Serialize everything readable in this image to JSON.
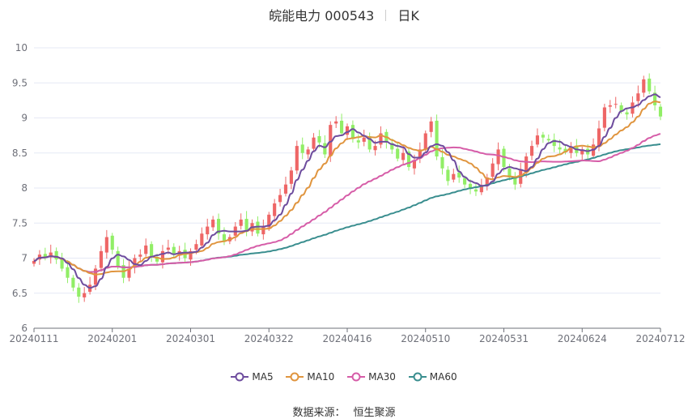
{
  "header": {
    "title": "皖能电力 000543",
    "period": "日K"
  },
  "footer": {
    "source_label": "数据来源：",
    "source_name": "恒生聚源"
  },
  "colors": {
    "up": "#ee6666",
    "down": "#91ee66",
    "ma5": "#6e4d9e",
    "ma10": "#e0953f",
    "ma30": "#d65da8",
    "ma60": "#3a8e8f",
    "grid": "#e6e9f5",
    "axis": "#6e7079"
  },
  "chart_data": {
    "type": "candlestick",
    "title": "皖能电力 000543",
    "ylim": [
      6,
      10
    ],
    "yticks": [
      "6",
      "6.5",
      "7",
      "7.5",
      "8",
      "8.5",
      "9",
      "9.5",
      "10"
    ],
    "x_tick_labels": [
      "20240111",
      "20240201",
      "20240301",
      "20240322",
      "20240416",
      "20240510",
      "20240531",
      "20240624",
      "20240712"
    ],
    "x_tick_indices": [
      0,
      14,
      28,
      42,
      56,
      70,
      84,
      98,
      112
    ],
    "legend": [
      "MA5",
      "MA10",
      "MA30",
      "MA60"
    ],
    "close": [
      6.96,
      7.05,
      7.02,
      7.08,
      6.98,
      6.85,
      6.72,
      6.58,
      6.45,
      6.5,
      6.62,
      6.85,
      7.1,
      7.3,
      7.12,
      6.88,
      6.72,
      6.85,
      7.0,
      7.05,
      7.18,
      7.02,
      6.95,
      7.1,
      7.15,
      7.05,
      7.1,
      7.0,
      7.1,
      7.2,
      7.35,
      7.45,
      7.55,
      7.35,
      7.25,
      7.3,
      7.45,
      7.55,
      7.4,
      7.5,
      7.35,
      7.45,
      7.62,
      7.78,
      7.9,
      8.05,
      8.25,
      8.6,
      8.5,
      8.55,
      8.72,
      8.65,
      8.48,
      8.9,
      8.95,
      8.78,
      8.88,
      8.7,
      8.65,
      8.72,
      8.55,
      8.6,
      8.78,
      8.65,
      8.55,
      8.42,
      8.5,
      8.3,
      8.4,
      8.55,
      8.78,
      8.95,
      8.45,
      8.28,
      8.1,
      8.2,
      8.15,
      8.05,
      8.0,
      7.95,
      8.02,
      8.15,
      8.35,
      8.55,
      8.3,
      8.15,
      8.05,
      8.25,
      8.45,
      8.6,
      8.75,
      8.72,
      8.68,
      8.6,
      8.55,
      8.52,
      8.58,
      8.5,
      8.55,
      8.48,
      8.62,
      8.85,
      9.15,
      9.18,
      9.2,
      9.1,
      9.05,
      9.22,
      9.35,
      9.55,
      9.38,
      9.18,
      9.02
    ],
    "open": [
      6.92,
      6.98,
      7.06,
      7.01,
      7.1,
      7.0,
      6.87,
      6.72,
      6.58,
      6.44,
      6.52,
      6.62,
      6.86,
      7.08,
      7.32,
      7.1,
      6.9,
      6.72,
      6.87,
      7.02,
      7.06,
      7.2,
      7.0,
      6.94,
      7.12,
      7.16,
      7.04,
      7.12,
      6.98,
      7.12,
      7.18,
      7.34,
      7.44,
      7.56,
      7.34,
      7.24,
      7.32,
      7.46,
      7.56,
      7.38,
      7.52,
      7.34,
      7.44,
      7.6,
      7.8,
      7.92,
      8.06,
      8.25,
      8.62,
      8.48,
      8.56,
      8.74,
      8.64,
      8.46,
      8.92,
      8.96,
      8.76,
      8.9,
      8.68,
      8.66,
      8.74,
      8.54,
      8.62,
      8.8,
      8.64,
      8.56,
      8.4,
      8.52,
      8.28,
      8.42,
      8.56,
      8.8,
      8.96,
      8.44,
      8.26,
      8.12,
      8.22,
      8.14,
      8.06,
      7.98,
      7.94,
      8.04,
      8.16,
      8.34,
      8.56,
      8.28,
      8.14,
      8.06,
      8.24,
      8.46,
      8.62,
      8.76,
      8.7,
      8.69,
      8.58,
      8.56,
      8.5,
      8.6,
      8.48,
      8.56,
      8.46,
      8.6,
      8.86,
      9.16,
      9.2,
      9.18,
      9.08,
      9.06,
      9.24,
      9.36,
      9.56,
      9.36,
      9.16
    ]
  }
}
